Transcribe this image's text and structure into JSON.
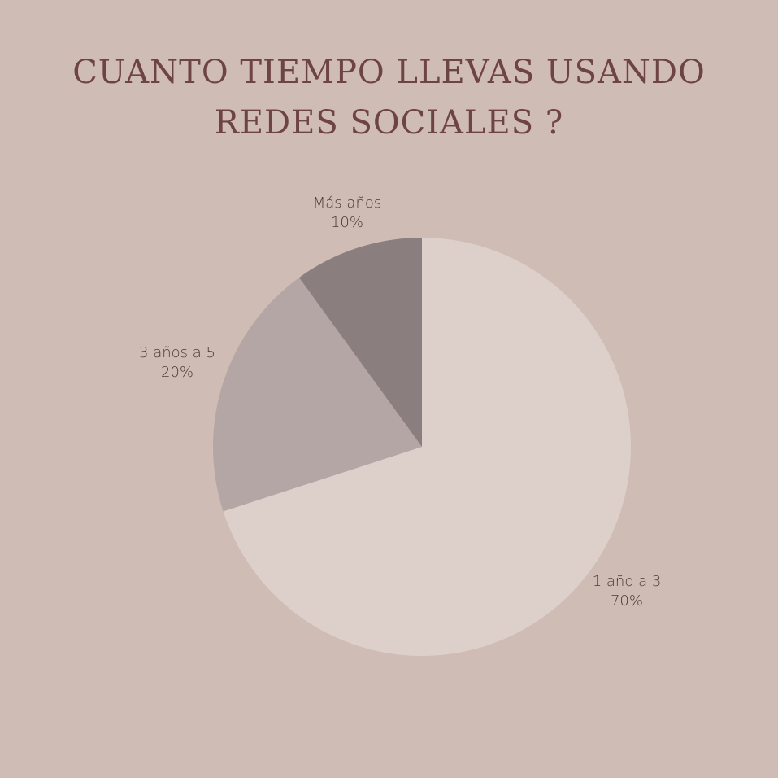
{
  "chart_data": {
    "type": "pie",
    "title_lines": [
      "CUANTO TIEMPO LLEVAS USANDO",
      "REDES SOCIALES ?"
    ],
    "slices": [
      {
        "label": "1 año a 3",
        "value": 70,
        "value_label": "70%",
        "color": "#ddd0cb"
      },
      {
        "label": "3 años a 5",
        "value": 20,
        "value_label": "20%",
        "color": "#b4a6a5"
      },
      {
        "label": "Más años",
        "value": 10,
        "value_label": "10%",
        "color": "#8b7e7e"
      }
    ],
    "start_angle": "12 o'clock",
    "direction": "clockwise",
    "legend": "none",
    "background_color": "#cfbcb4",
    "title_color": "#6e4345"
  }
}
